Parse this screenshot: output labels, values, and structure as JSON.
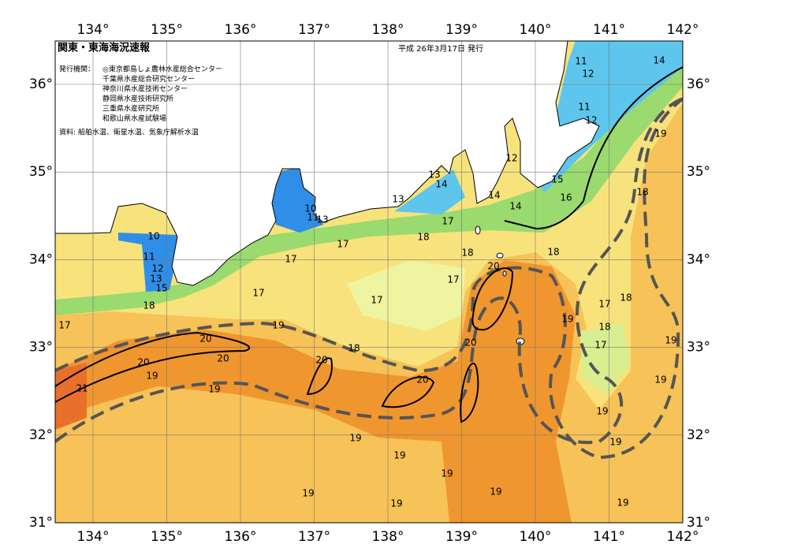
{
  "header": {
    "title": "関東・東海海況速報",
    "date": "平成 26年3月17日 発行",
    "issuer_label": "発行機関：",
    "issuers": [
      "◎東京都島しょ農林水産総合センター",
      "千葉県水産総合研究センター",
      "神奈川県水産技術センター",
      "静岡県水産技術研究所",
      "三重県水産研究所",
      "和歌山県水産試験場"
    ],
    "source": "資料: 船舶水温、衛星水温、気象庁解析水温"
  },
  "longitude_labels": [
    "134°",
    "135°",
    "136°",
    "137°",
    "138°",
    "139°",
    "140°",
    "141°",
    "142°"
  ],
  "latitude_labels": [
    "36°",
    "35°",
    "34°",
    "33°",
    "32°",
    "31°"
  ],
  "contour_labels": [
    11,
    14,
    12,
    11,
    12,
    19,
    12,
    13,
    14,
    15,
    18,
    14,
    16,
    13,
    14,
    10,
    11,
    13,
    17,
    18,
    10,
    17,
    18,
    18,
    11,
    17,
    20,
    12,
    13,
    17,
    15,
    17,
    17,
    17,
    18,
    18,
    19,
    17,
    19,
    18,
    20,
    19,
    20,
    17,
    18,
    20,
    20,
    20,
    19,
    19,
    20,
    21,
    19,
    19,
    19,
    19,
    19,
    19,
    19,
    19,
    19,
    19
  ]
}
